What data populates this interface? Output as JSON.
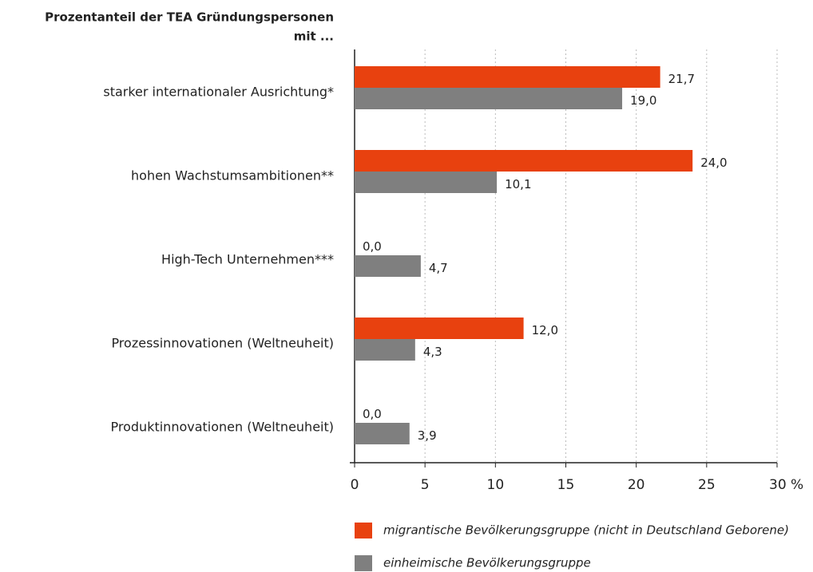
{
  "chart_data": {
    "type": "barh",
    "title": [
      "Prozentanteil der TEA Gründungspersonen",
      "mit ..."
    ],
    "categories": [
      "starker internationaler Ausrichtung*",
      "hohen Wachstumsambitionen**",
      "High-Tech Unternehmen***",
      "Prozessinnovationen (Weltneuheit)",
      "Produktinnovationen (Weltneuheit)"
    ],
    "series": [
      {
        "name": "migrantische Bevölkerungsgruppe (nicht in Deutschland Geborene)",
        "color": "#e8410f",
        "values": [
          21.7,
          24.0,
          0.0,
          12.0,
          0.0
        ],
        "value_labels": [
          "21,7",
          "24,0",
          "0,0",
          "12,0",
          "0,0"
        ]
      },
      {
        "name": "einheimische Bevölkerungsgruppe",
        "color": "#7f7f7f",
        "values": [
          19.0,
          10.1,
          4.7,
          4.3,
          3.9
        ],
        "value_labels": [
          "19,0",
          "10,1",
          "4,7",
          "4,3",
          "3,9"
        ]
      }
    ],
    "xlim": [
      0,
      30
    ],
    "xticks": [
      0,
      5,
      10,
      15,
      20,
      25,
      {
        "value": 30,
        "label": "30 %"
      }
    ],
    "grid": true,
    "legend": "bottom"
  }
}
